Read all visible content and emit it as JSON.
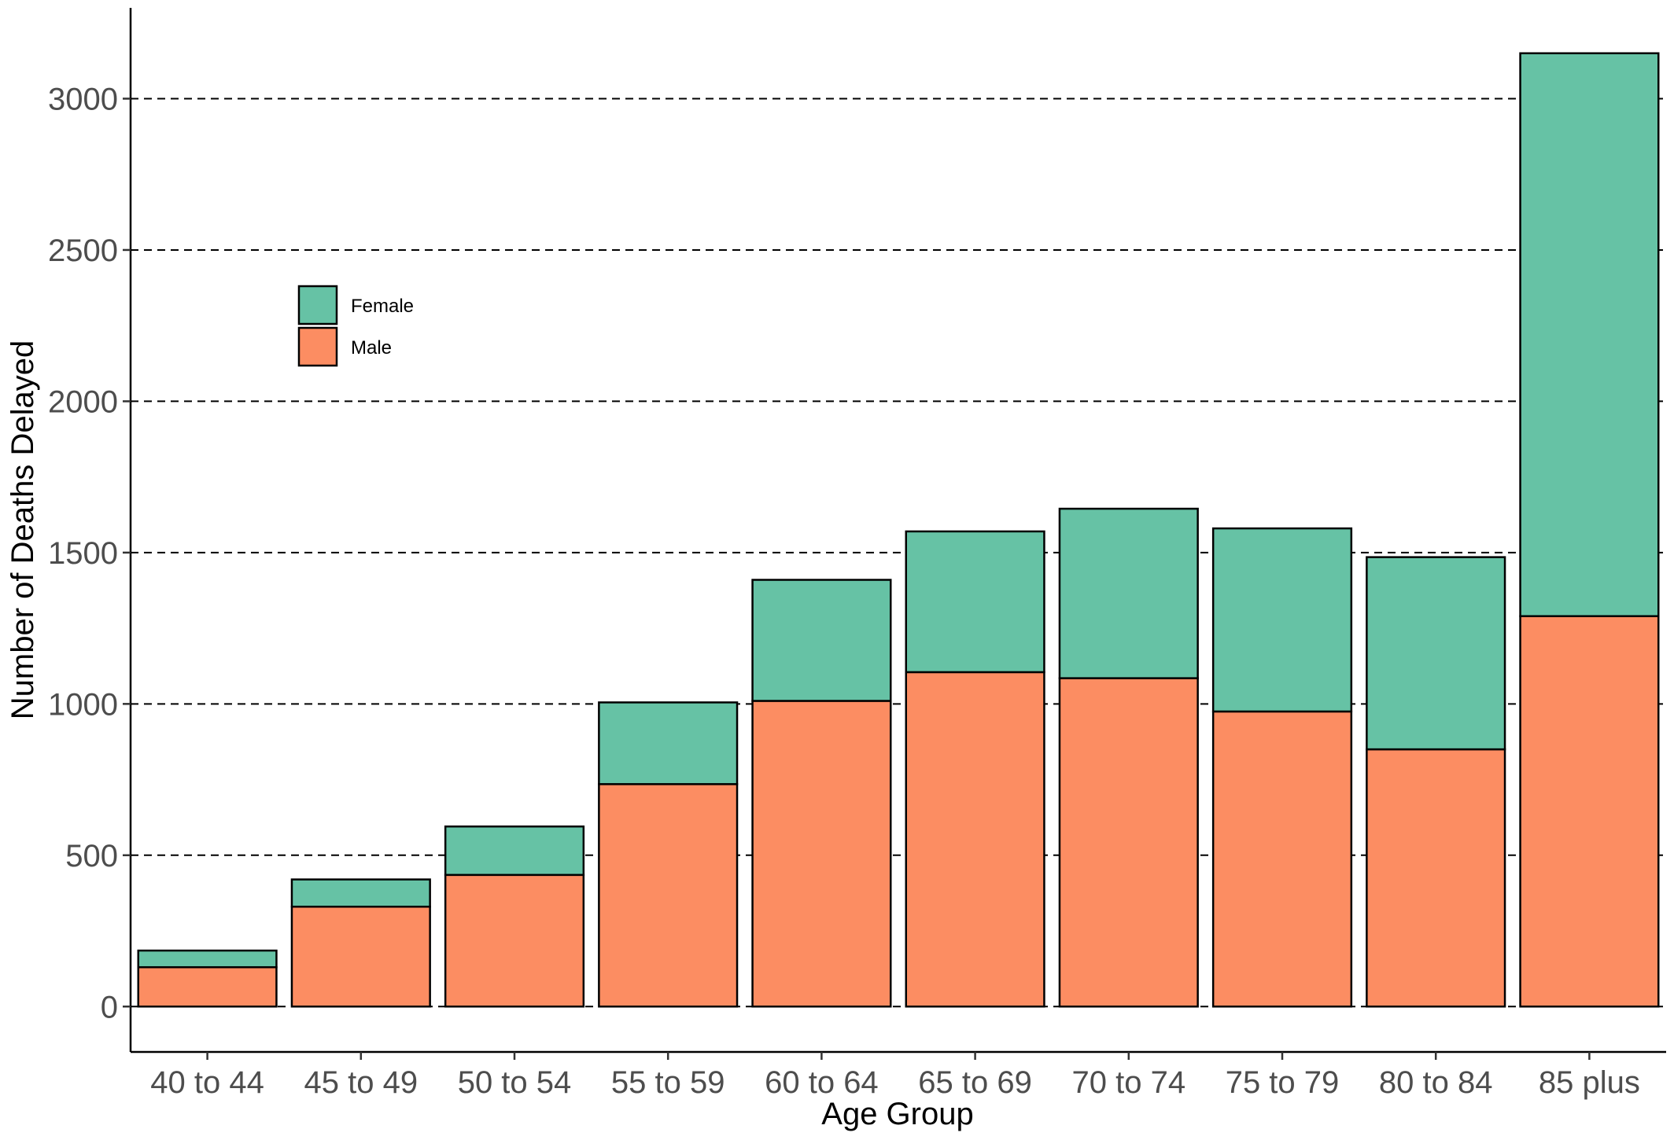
{
  "chart_data": {
    "type": "bar",
    "stacked": true,
    "title": "",
    "xlabel": "Age Group",
    "ylabel": "Number of Deaths Delayed",
    "ylim": [
      -150,
      3300
    ],
    "yticks": [
      0,
      500,
      1000,
      1500,
      2000,
      2500,
      3000
    ],
    "grid": "horizontal dashed",
    "legend_position": "top-left",
    "categories": [
      "40 to 44",
      "45 to 49",
      "50 to 54",
      "55 to 59",
      "60 to 64",
      "65 to 69",
      "70 to 74",
      "75 to 79",
      "80 to 84",
      "85 plus"
    ],
    "series": [
      {
        "name": "Male",
        "color": "#FC8D62",
        "values": [
          130,
          330,
          435,
          735,
          1010,
          1105,
          1085,
          975,
          850,
          1290
        ]
      },
      {
        "name": "Female",
        "color": "#66C2A5",
        "values": [
          55,
          90,
          160,
          270,
          400,
          465,
          560,
          605,
          635,
          1860
        ]
      }
    ]
  }
}
